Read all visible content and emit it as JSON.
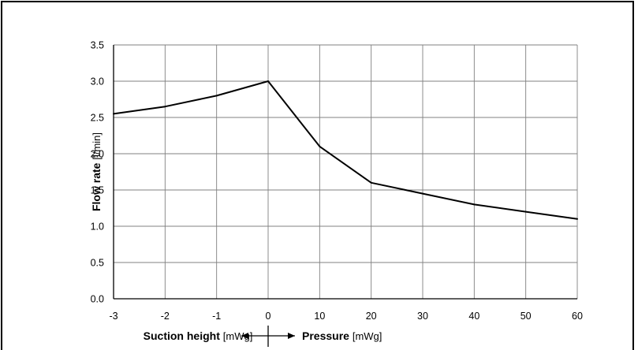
{
  "chart_data": {
    "type": "line",
    "x_tick_labels": [
      "-3",
      "-2",
      "-1",
      "0",
      "10",
      "20",
      "30",
      "40",
      "50",
      "60"
    ],
    "x": [
      "-3",
      "-2",
      "-1",
      "0",
      "10",
      "20",
      "30",
      "40",
      "50",
      "60"
    ],
    "series": [
      {
        "values": [
          2.55,
          2.65,
          2.8,
          3.0,
          2.1,
          1.6,
          1.45,
          1.3,
          1.2,
          1.1
        ]
      }
    ],
    "ylim": [
      0,
      3.5
    ],
    "y_tick_labels": [
      "0.0",
      "0.5",
      "1.0",
      "1.5",
      "2.0",
      "2.5",
      "3.0",
      "3.5"
    ],
    "ylabel": "Flow rate",
    "ylabel_unit": "[l/min]",
    "xlabel_left": "Suction height",
    "xlabel_left_unit": "[mWg]",
    "xlabel_right": "Pressure",
    "xlabel_right_unit": "[mWg]",
    "grid": true,
    "colors": {
      "line": "#000000",
      "grid": "#808080",
      "plot_background": "#ffffff",
      "page_background": "#ffffff"
    }
  }
}
